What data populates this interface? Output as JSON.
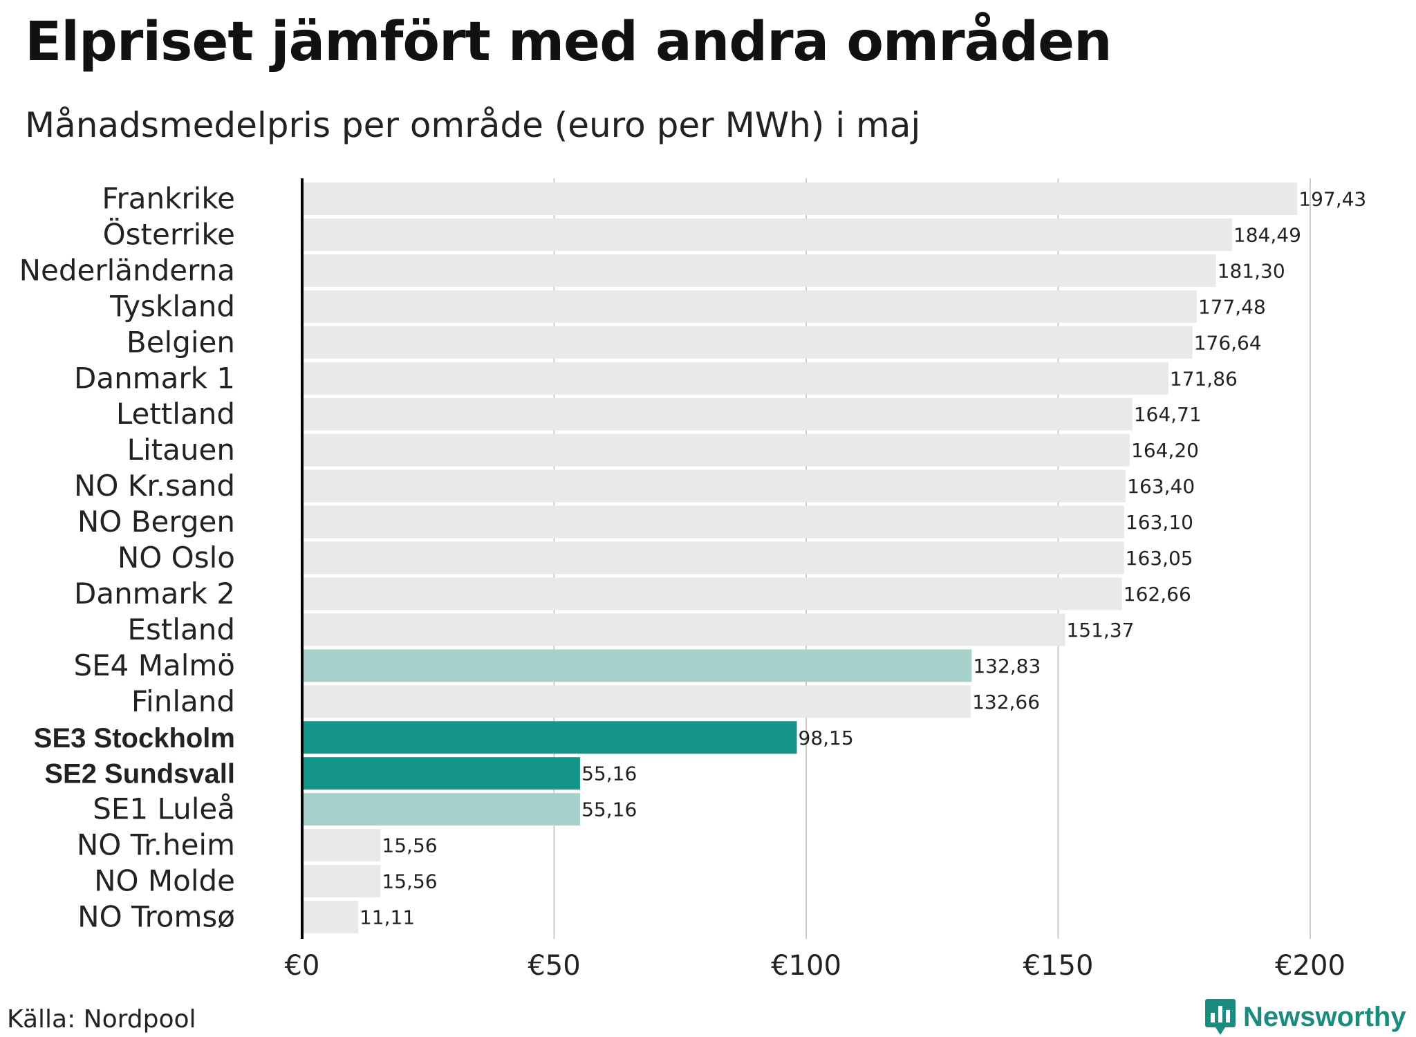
{
  "chart_data": {
    "type": "bar",
    "orientation": "horizontal",
    "title": "Elpriset jämfört med andra områden",
    "subtitle": "Månadsmedelpris per område (euro per MWh) i maj",
    "xlabel": "",
    "ylabel": "",
    "xlim": [
      0,
      200
    ],
    "xticks": [
      0,
      50,
      100,
      150,
      200
    ],
    "xtick_labels": [
      "€0",
      "€50",
      "€100",
      "€150",
      "€200"
    ],
    "grid": true,
    "categories": [
      "Frankrike",
      "Österrike",
      "Nederländerna",
      "Tyskland",
      "Belgien",
      "Danmark 1",
      "Lettland",
      "Litauen",
      "NO Kr.sand",
      "NO Bergen",
      "NO Oslo",
      "Danmark 2",
      "Estland",
      "SE4 Malmö",
      "Finland",
      "SE3 Stockholm",
      "SE2 Sundsvall",
      "SE1 Luleå",
      "NO Tr.heim",
      "NO Molde",
      "NO Tromsø"
    ],
    "values": [
      197.43,
      184.49,
      181.3,
      177.48,
      176.64,
      171.86,
      164.71,
      164.2,
      163.4,
      163.1,
      163.05,
      162.66,
      151.37,
      132.83,
      132.66,
      98.15,
      55.16,
      55.16,
      15.56,
      15.56,
      11.11
    ],
    "value_labels": [
      "197,43",
      "184,49",
      "181,30",
      "177,48",
      "176,64",
      "171,86",
      "164,71",
      "164,20",
      "163,40",
      "163,10",
      "163,05",
      "162,66",
      "151,37",
      "132,83",
      "132,66",
      "98,15",
      "55,16",
      "55,16",
      "15,56",
      "15,56",
      "11,11"
    ],
    "highlight": [
      "none",
      "none",
      "none",
      "none",
      "none",
      "none",
      "none",
      "none",
      "none",
      "none",
      "none",
      "none",
      "none",
      "light",
      "none",
      "strong",
      "strong",
      "light",
      "none",
      "none",
      "none"
    ],
    "bold_labels": [
      "SE3 Stockholm",
      "SE2 Sundsvall"
    ]
  },
  "colors": {
    "default_bar": "#e9e9e9",
    "highlight_light": "#a6d0ca",
    "highlight_strong": "#14978a",
    "grid": "#cccccc",
    "axis": "#000000",
    "brand": "#1a8c7f"
  },
  "footer": {
    "source": "Källa: Nordpool",
    "brand": "Newsworthy",
    "brand_icon": "newsworthy-logo-icon"
  }
}
